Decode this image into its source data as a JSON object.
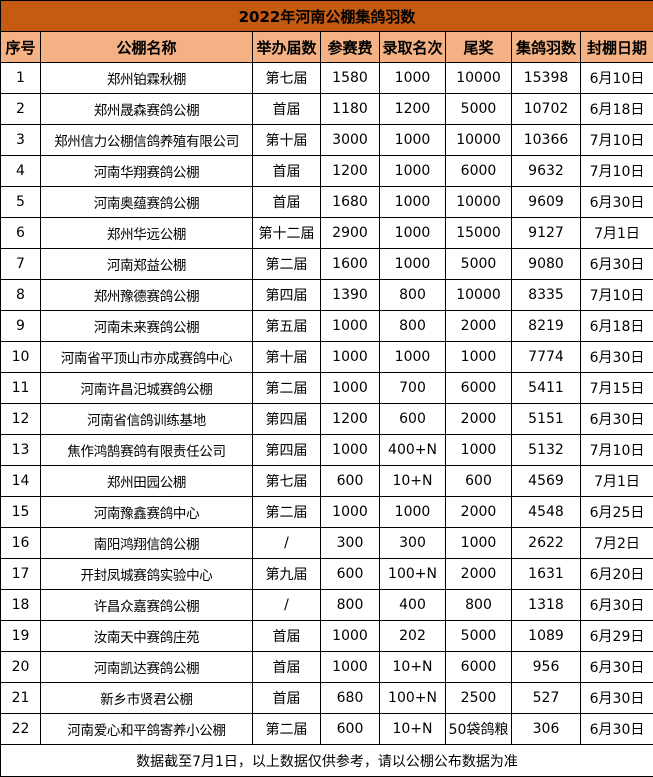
{
  "title": "2022年河南公棚集鸽羽数",
  "colors": {
    "title_bg": "#C55A11",
    "header_bg": "#F4B183"
  },
  "columns": [
    "序号",
    "公棚名称",
    "举办届数",
    "参赛费",
    "录取名次",
    "尾奖",
    "集鸽羽数",
    "封棚日期"
  ],
  "rows": [
    [
      "1",
      "郑州铂霖秋棚",
      "第七届",
      "1580",
      "1000",
      "10000",
      "15398",
      "6月10日"
    ],
    [
      "2",
      "郑州晟森赛鸽公棚",
      "首届",
      "1180",
      "1200",
      "5000",
      "10702",
      "6月18日"
    ],
    [
      "3",
      "郑州信力公棚信鸽养殖有限公司",
      "第十届",
      "3000",
      "1000",
      "10000",
      "10366",
      "7月10日"
    ],
    [
      "4",
      "河南华翔赛鸽公棚",
      "首届",
      "1200",
      "1000",
      "6000",
      "9632",
      "7月10日"
    ],
    [
      "5",
      "河南奥蕴赛鸽公棚",
      "首届",
      "1680",
      "1000",
      "10000",
      "9609",
      "6月30日"
    ],
    [
      "6",
      "郑州华远公棚",
      "第十二届",
      "2900",
      "1000",
      "15000",
      "9127",
      "7月1日"
    ],
    [
      "7",
      "河南郑益公棚",
      "第二届",
      "1600",
      "1000",
      "5000",
      "9080",
      "6月30日"
    ],
    [
      "8",
      "郑州豫德赛鸽公棚",
      "第四届",
      "1390",
      "800",
      "10000",
      "8335",
      "7月10日"
    ],
    [
      "9",
      "河南未来赛鸽公棚",
      "第五届",
      "1000",
      "800",
      "2000",
      "8219",
      "6月18日"
    ],
    [
      "10",
      "河南省平顶山市亦成赛鸽中心",
      "第十届",
      "1000",
      "1000",
      "1000",
      "7774",
      "6月30日"
    ],
    [
      "11",
      "河南许昌汜城赛鸽公棚",
      "第二届",
      "1000",
      "700",
      "6000",
      "5411",
      "7月15日"
    ],
    [
      "12",
      "河南省信鸽训练基地",
      "第四届",
      "1200",
      "600",
      "2000",
      "5151",
      "6月30日"
    ],
    [
      "13",
      "焦作鸿鹄赛鸽有限责任公司",
      "第四届",
      "1000",
      "400+N",
      "1000",
      "5132",
      "7月10日"
    ],
    [
      "14",
      "郑州田园公棚",
      "第七届",
      "600",
      "10+N",
      "600",
      "4569",
      "7月1日"
    ],
    [
      "15",
      "河南豫鑫赛鸽中心",
      "第二届",
      "1000",
      "1000",
      "2000",
      "4548",
      "6月25日"
    ],
    [
      "16",
      "南阳鸿翔信鸽公棚",
      "/",
      "300",
      "300",
      "1000",
      "2622",
      "7月2日"
    ],
    [
      "17",
      "开封凤城赛鸽实验中心",
      "第九届",
      "600",
      "100+N",
      "2000",
      "1631",
      "6月20日"
    ],
    [
      "18",
      "许昌众嘉赛鸽公棚",
      "/",
      "800",
      "400",
      "800",
      "1318",
      "6月30日"
    ],
    [
      "19",
      "汝南天中赛鸽庄苑",
      "首届",
      "1000",
      "202",
      "5000",
      "1089",
      "6月29日"
    ],
    [
      "20",
      "河南凯达赛鸽公棚",
      "首届",
      "1000",
      "10+N",
      "6000",
      "956",
      "6月30日"
    ],
    [
      "21",
      "新乡市贤君公棚",
      "首届",
      "680",
      "100+N",
      "2500",
      "527",
      "6月30日"
    ],
    [
      "22",
      "河南爱心和平鸽寄养小公棚",
      "第二届",
      "600",
      "10+N",
      "50袋鸽粮",
      "306",
      "6月30日"
    ]
  ],
  "footer": "数据截至7月1日，以上数据仅供参考，请以公棚公布数据为准"
}
